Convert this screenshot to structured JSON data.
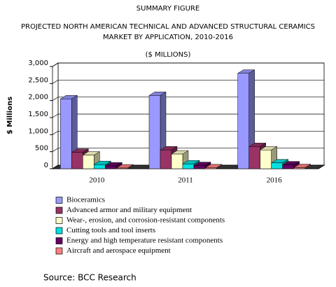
{
  "chart_data": {
    "type": "bar3d",
    "heading": "SUMMARY FIGURE",
    "title": [
      "PROJECTED NORTH AMERICAN TECHNICAL AND ADVANCED STRUCTURAL CERAMICS",
      "MARKET BY APPLICATION, 2010-2016"
    ],
    "subtitle": "($ MILLIONS)",
    "y_label": "$ Millions",
    "source": "Source: BCC Research",
    "categories": [
      "2010",
      "2011",
      "2016"
    ],
    "series": [
      {
        "name": "Bioceramics",
        "color": "#9999ff",
        "values": [
          2050,
          2150,
          2800
        ]
      },
      {
        "name": "Advanced armor and  military equipment",
        "color": "#993366",
        "values": [
          480,
          550,
          650
        ]
      },
      {
        "name": "Wear-, erosion, and corrosion-resistant components",
        "color": "#ffffcc",
        "values": [
          400,
          430,
          550
        ]
      },
      {
        "name": "Cutting tools and tool inserts",
        "color": "#00e0e0",
        "values": [
          120,
          140,
          170
        ]
      },
      {
        "name": "Energy and high temperature resistant components",
        "color": "#660066",
        "values": [
          80,
          90,
          110
        ]
      },
      {
        "name": "Aircraft and aerospace equipment",
        "color": "#ff8080",
        "values": [
          20,
          25,
          30
        ]
      }
    ],
    "ylim": [
      0,
      3000
    ],
    "yticks": [
      0,
      500,
      {
        "value": 1000,
        "label": "1,000"
      },
      {
        "value": 1500,
        "label": "1,500"
      },
      {
        "value": 2000,
        "label": "2,000"
      },
      {
        "value": 2500,
        "label": "2,500"
      },
      {
        "value": 3000,
        "label": "3,000"
      }
    ],
    "grid": true
  }
}
